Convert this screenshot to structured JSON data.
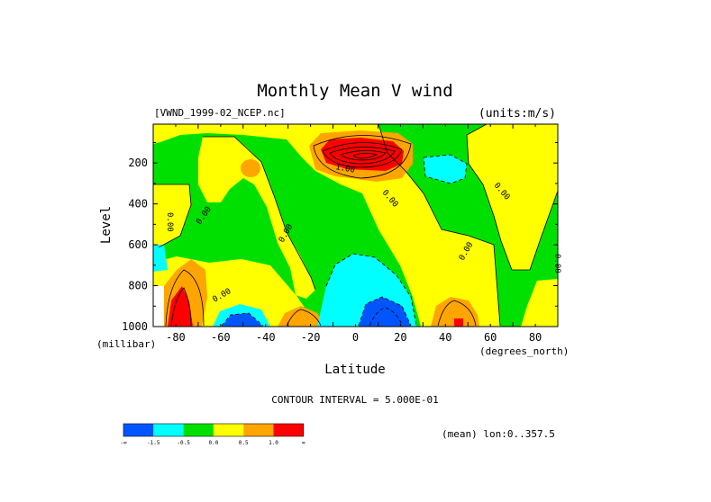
{
  "chart_data": {
    "type": "heatmap",
    "title": "Monthly Mean V wind",
    "dataset_label": "[VWND_1999-02_NCEP.nc]",
    "units_label": "(units:m/s)",
    "xlabel": "Latitude",
    "xunits": "(degrees_north)",
    "ylabel": "Level",
    "yunits": "(millibar)",
    "xlim": [
      -90,
      90
    ],
    "ylim": [
      1000,
      10
    ],
    "y_reversed": true,
    "x_ticks": [
      "-80",
      "-60",
      "-40",
      "-20",
      "0",
      "20",
      "40",
      "60",
      "80"
    ],
    "y_ticks": [
      "200",
      "400",
      "600",
      "800",
      "1000"
    ],
    "contour_interval_label": "CONTOUR INTERVAL = 5.000E-01",
    "mean_label": "(mean) lon:0..357.5",
    "contour_labels": [
      "0.00",
      "0.00",
      "0.00",
      "0.00",
      "0.00",
      "0.00",
      "0.00",
      "0.00",
      "1.00"
    ],
    "legend": {
      "colors": [
        "#0055ff",
        "#00ffff",
        "#00e000",
        "#ffff00",
        "#ffa500",
        "#ff0000"
      ],
      "tick_labels": [
        "-∞",
        "-1.5",
        "-0.5",
        "0.0",
        "0.5",
        "1.0",
        "∞"
      ]
    }
  }
}
